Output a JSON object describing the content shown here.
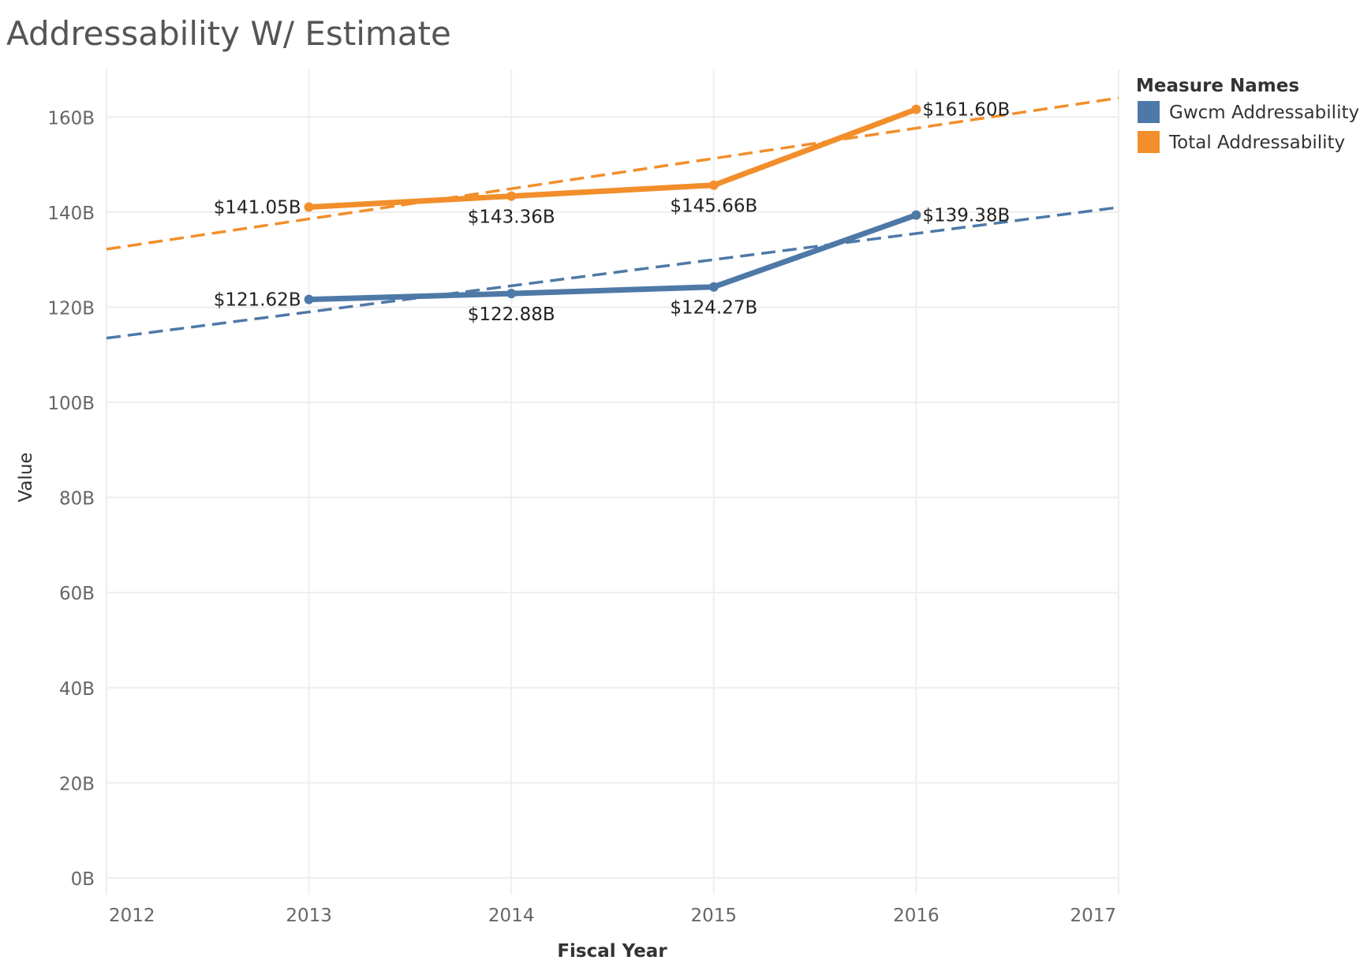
{
  "chart_data": {
    "type": "line",
    "title": "Addressability W/ Estimate",
    "xlabel": "Fiscal Year",
    "ylabel": "Value",
    "xlim": [
      2012,
      2017
    ],
    "ylim": [
      -2.5,
      170
    ],
    "x_ticks": [
      {
        "value": 2012,
        "label": "2012"
      },
      {
        "value": 2013,
        "label": "2013"
      },
      {
        "value": 2014,
        "label": "2014"
      },
      {
        "value": 2015,
        "label": "2015"
      },
      {
        "value": 2016,
        "label": "2016"
      },
      {
        "value": 2017,
        "label": "2017"
      }
    ],
    "y_ticks": [
      {
        "value": 0,
        "label": "0B"
      },
      {
        "value": 20,
        "label": "20B"
      },
      {
        "value": 40,
        "label": "40B"
      },
      {
        "value": 60,
        "label": "60B"
      },
      {
        "value": 80,
        "label": "80B"
      },
      {
        "value": 100,
        "label": "100B"
      },
      {
        "value": 120,
        "label": "120B"
      },
      {
        "value": 140,
        "label": "140B"
      },
      {
        "value": 160,
        "label": "160B"
      }
    ],
    "grid": true,
    "legend": {
      "title": "Measure Names",
      "position": "top-right"
    },
    "series": [
      {
        "name": "Gwcm Addressability",
        "color": "#4e79a7",
        "x": [
          2013,
          2014,
          2015,
          2016
        ],
        "values": [
          121.62,
          122.88,
          124.27,
          139.38
        ],
        "labels": [
          "$121.62B",
          "$122.88B",
          "$124.27B",
          "$139.38B"
        ],
        "trend": {
          "x": [
            2012,
            2017
          ],
          "y": [
            113.5,
            141.0
          ]
        }
      },
      {
        "name": "Total Addressability",
        "color": "#f28e2b",
        "x": [
          2013,
          2014,
          2015,
          2016
        ],
        "values": [
          141.05,
          143.36,
          145.66,
          161.6
        ],
        "labels": [
          "$141.05B",
          "$143.36B",
          "$145.66B",
          "$161.60B"
        ],
        "trend": {
          "x": [
            2012,
            2017
          ],
          "y": [
            132.2,
            164.0
          ]
        }
      }
    ]
  }
}
